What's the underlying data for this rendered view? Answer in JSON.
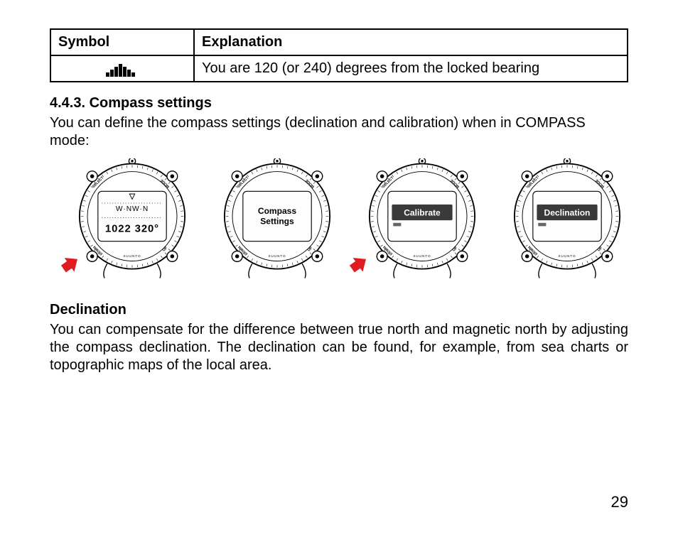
{
  "table": {
    "headers": {
      "symbol": "Symbol",
      "explanation": "Explanation"
    },
    "row": {
      "explanation": "You are 120 (or 240) degrees from the locked bearing"
    }
  },
  "section": {
    "heading": "4.4.3. Compass settings",
    "intro": "You can define the compass settings (declination and calibration) when in COMPASS mode:"
  },
  "watches": [
    {
      "line1": "W NW N",
      "line2": "1022 320°",
      "has_arrow": true
    },
    {
      "line1": "Compass",
      "line2": "Settings",
      "has_arrow": false
    },
    {
      "line1": "Calibrate",
      "line2": "",
      "inverted": true,
      "has_arrow": true
    },
    {
      "line1": "Declination",
      "line2": "",
      "inverted": true,
      "has_arrow": false
    }
  ],
  "watch_labels": {
    "top_left": "SELECT",
    "top_right": "MODE",
    "bottom_left": "DOWN",
    "bottom_right": "UP",
    "brand": "SUUNTO"
  },
  "subsection": {
    "heading": "Declination",
    "text": "You can compensate for the difference between true north and magnetic north by adjusting the compass declination. The declination can be found, for example, from sea charts or topographic maps of the local area."
  },
  "page_number": "29",
  "colors": {
    "arrow": "#e11b22",
    "invert_bg": "#3a3a3a",
    "invert_text": "#ffffff"
  }
}
